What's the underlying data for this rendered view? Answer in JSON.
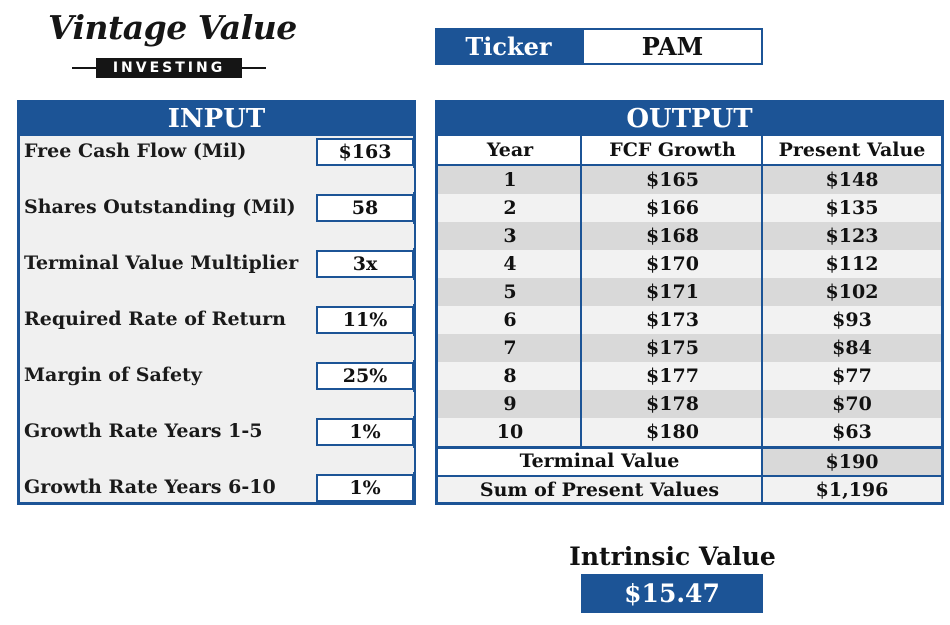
{
  "logo": {
    "script": "Vintage Value",
    "sub": "INVESTING"
  },
  "ticker": {
    "label": "Ticker",
    "value": "PAM"
  },
  "input": {
    "title": "INPUT",
    "rows": [
      {
        "label": "Free Cash Flow (Mil)",
        "value": "$163"
      },
      {
        "label": "Shares Outstanding (Mil)",
        "value": "58"
      },
      {
        "label": "Terminal Value Multiplier",
        "value": "3x"
      },
      {
        "label": "Required Rate of Return",
        "value": "11%"
      },
      {
        "label": "Margin of Safety",
        "value": "25%"
      },
      {
        "label": "Growth Rate Years 1-5",
        "value": "1%"
      },
      {
        "label": "Growth Rate Years 6-10",
        "value": "1%"
      }
    ]
  },
  "output": {
    "title": "OUTPUT",
    "headers": [
      "Year",
      "FCF Growth",
      "Present Value"
    ],
    "rows": [
      [
        "1",
        "$165",
        "$148"
      ],
      [
        "2",
        "$166",
        "$135"
      ],
      [
        "3",
        "$168",
        "$123"
      ],
      [
        "4",
        "$170",
        "$112"
      ],
      [
        "5",
        "$171",
        "$102"
      ],
      [
        "6",
        "$173",
        "$93"
      ],
      [
        "7",
        "$175",
        "$84"
      ],
      [
        "8",
        "$177",
        "$77"
      ],
      [
        "9",
        "$178",
        "$70"
      ],
      [
        "10",
        "$180",
        "$63"
      ]
    ],
    "terminal_label": "Terminal Value",
    "terminal_value": "$190",
    "sum_label": "Sum of Present Values",
    "sum_value": "$1,196"
  },
  "intrinsic": {
    "title": "Intrinsic Value",
    "value": "$15.47"
  },
  "colors": {
    "accent": "#1c5496",
    "row_light": "#f2f2f2",
    "row_dark": "#d9d9d9"
  }
}
